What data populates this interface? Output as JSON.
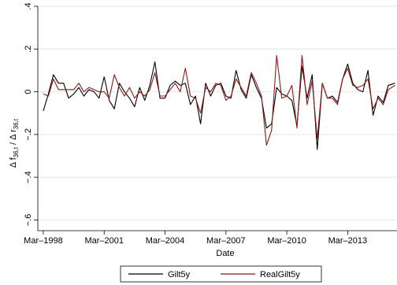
{
  "chart_data": {
    "type": "line",
    "xlabel": "Date",
    "ylabel": "Δ f36,t / Δ r36,t",
    "ylabel_parts": {
      "delta1": "Δ f",
      "sub1": "36,t",
      "slash": " / Δ r",
      "sub2": "36,t"
    },
    "x_ticks": [
      {
        "label": "Mar–1998",
        "year": 1998.17
      },
      {
        "label": "Mar–2001",
        "year": 2001.17
      },
      {
        "label": "Mar–2004",
        "year": 2004.17
      },
      {
        "label": "Mar–2007",
        "year": 2007.17
      },
      {
        "label": "Mar–2010",
        "year": 2010.17
      },
      {
        "label": "Mar–2013",
        "year": 2013.17
      }
    ],
    "xlim": [
      1997.9,
      2015.6
    ],
    "y_ticks": [
      {
        "label": "−.6",
        "value": -0.6
      },
      {
        "label": "−.4",
        "value": -0.4
      },
      {
        "label": "−.2",
        "value": -0.2
      },
      {
        "label": "0",
        "value": 0
      },
      {
        "label": ".2",
        "value": 0.2
      },
      {
        "label": ".4",
        "value": 0.4
      }
    ],
    "ylim": [
      -0.65,
      0.4
    ],
    "grid": "horizontal",
    "legend_position": "bottom",
    "series": [
      {
        "name": "Gilt5y",
        "color": "#000000",
        "points": [
          [
            1998.17,
            -0.09
          ],
          [
            1998.42,
            -0.01
          ],
          [
            1998.67,
            0.08
          ],
          [
            1998.92,
            0.04
          ],
          [
            1999.17,
            0.04
          ],
          [
            1999.42,
            -0.03
          ],
          [
            1999.67,
            -0.01
          ],
          [
            1999.92,
            0.02
          ],
          [
            2000.17,
            -0.02
          ],
          [
            2000.42,
            0.01
          ],
          [
            2000.67,
            0.0
          ],
          [
            2000.92,
            -0.03
          ],
          [
            2001.17,
            0.07
          ],
          [
            2001.42,
            -0.04
          ],
          [
            2001.67,
            -0.08
          ],
          [
            2001.92,
            0.04
          ],
          [
            2002.17,
            0.0
          ],
          [
            2002.42,
            -0.03
          ],
          [
            2002.67,
            -0.07
          ],
          [
            2002.92,
            0.02
          ],
          [
            2003.17,
            -0.04
          ],
          [
            2003.42,
            0.03
          ],
          [
            2003.67,
            0.14
          ],
          [
            2003.92,
            -0.03
          ],
          [
            2004.17,
            -0.03
          ],
          [
            2004.42,
            0.03
          ],
          [
            2004.67,
            0.05
          ],
          [
            2004.92,
            0.03
          ],
          [
            2005.17,
            0.04
          ],
          [
            2005.42,
            -0.06
          ],
          [
            2005.67,
            -0.02
          ],
          [
            2005.92,
            -0.15
          ],
          [
            2006.17,
            0.04
          ],
          [
            2006.42,
            -0.02
          ],
          [
            2006.67,
            0.03
          ],
          [
            2006.92,
            0.04
          ],
          [
            2007.17,
            -0.02
          ],
          [
            2007.42,
            -0.03
          ],
          [
            2007.67,
            0.1
          ],
          [
            2007.92,
            0.01
          ],
          [
            2008.17,
            -0.03
          ],
          [
            2008.42,
            0.08
          ],
          [
            2008.67,
            0.02
          ],
          [
            2008.92,
            -0.03
          ],
          [
            2009.17,
            -0.17
          ],
          [
            2009.42,
            -0.15
          ],
          [
            2009.67,
            0.02
          ],
          [
            2009.92,
            -0.01
          ],
          [
            2010.17,
            -0.02
          ],
          [
            2010.42,
            -0.04
          ],
          [
            2010.67,
            -0.16
          ],
          [
            2010.92,
            0.12
          ],
          [
            2011.17,
            -0.03
          ],
          [
            2011.42,
            0.08
          ],
          [
            2011.67,
            -0.27
          ],
          [
            2011.92,
            0.04
          ],
          [
            2012.17,
            -0.03
          ],
          [
            2012.42,
            -0.02
          ],
          [
            2012.67,
            -0.05
          ],
          [
            2012.92,
            0.06
          ],
          [
            2013.17,
            0.13
          ],
          [
            2013.42,
            0.04
          ],
          [
            2013.67,
            0.01
          ],
          [
            2013.92,
            0.0
          ],
          [
            2014.17,
            0.1
          ],
          [
            2014.42,
            -0.11
          ],
          [
            2014.67,
            -0.02
          ],
          [
            2014.92,
            -0.05
          ],
          [
            2015.17,
            0.03
          ],
          [
            2015.5,
            0.04
          ]
        ]
      },
      {
        "name": "RealGilt5y",
        "color": "#8b1a1a",
        "points": [
          [
            1998.17,
            -0.01
          ],
          [
            1998.42,
            -0.02
          ],
          [
            1998.67,
            0.06
          ],
          [
            1998.92,
            0.01
          ],
          [
            1999.17,
            0.01
          ],
          [
            1999.42,
            0.01
          ],
          [
            1999.67,
            0.01
          ],
          [
            1999.92,
            0.04
          ],
          [
            2000.17,
            0.0
          ],
          [
            2000.42,
            0.02
          ],
          [
            2000.67,
            0.01
          ],
          [
            2000.92,
            0.0
          ],
          [
            2001.17,
            0.0
          ],
          [
            2001.42,
            -0.03
          ],
          [
            2001.67,
            0.08
          ],
          [
            2001.92,
            0.02
          ],
          [
            2002.17,
            -0.02
          ],
          [
            2002.42,
            0.02
          ],
          [
            2002.67,
            -0.03
          ],
          [
            2002.92,
            0.0
          ],
          [
            2003.17,
            -0.02
          ],
          [
            2003.42,
            0.01
          ],
          [
            2003.67,
            0.09
          ],
          [
            2003.92,
            -0.02
          ],
          [
            2004.17,
            -0.02
          ],
          [
            2004.42,
            0.01
          ],
          [
            2004.67,
            0.04
          ],
          [
            2004.92,
            0.0
          ],
          [
            2005.17,
            0.11
          ],
          [
            2005.42,
            -0.02
          ],
          [
            2005.67,
            -0.03
          ],
          [
            2005.92,
            -0.1
          ],
          [
            2006.17,
            0.02
          ],
          [
            2006.42,
            0.0
          ],
          [
            2006.67,
            0.04
          ],
          [
            2006.92,
            0.03
          ],
          [
            2007.17,
            -0.04
          ],
          [
            2007.42,
            -0.02
          ],
          [
            2007.67,
            0.06
          ],
          [
            2007.92,
            0.02
          ],
          [
            2008.17,
            -0.02
          ],
          [
            2008.42,
            0.09
          ],
          [
            2008.67,
            0.04
          ],
          [
            2008.92,
            -0.02
          ],
          [
            2009.17,
            -0.25
          ],
          [
            2009.42,
            -0.18
          ],
          [
            2009.67,
            0.17
          ],
          [
            2009.92,
            -0.03
          ],
          [
            2010.17,
            -0.02
          ],
          [
            2010.42,
            0.03
          ],
          [
            2010.67,
            -0.17
          ],
          [
            2010.92,
            0.17
          ],
          [
            2011.17,
            -0.06
          ],
          [
            2011.42,
            0.05
          ],
          [
            2011.67,
            -0.22
          ],
          [
            2011.92,
            0.04
          ],
          [
            2012.17,
            -0.03
          ],
          [
            2012.42,
            -0.03
          ],
          [
            2012.67,
            -0.06
          ],
          [
            2012.92,
            0.06
          ],
          [
            2013.17,
            0.11
          ],
          [
            2013.42,
            0.03
          ],
          [
            2013.67,
            0.02
          ],
          [
            2013.92,
            0.03
          ],
          [
            2014.17,
            0.06
          ],
          [
            2014.42,
            -0.08
          ],
          [
            2014.67,
            -0.03
          ],
          [
            2014.92,
            -0.06
          ],
          [
            2015.17,
            0.01
          ],
          [
            2015.5,
            0.03
          ]
        ]
      }
    ]
  }
}
